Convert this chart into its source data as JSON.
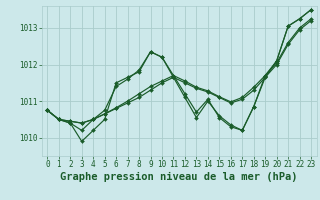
{
  "background_color": "#cce8ea",
  "grid_color": "#aacccc",
  "line_color": "#1a5c2a",
  "title": "Graphe pression niveau de la mer (hPa)",
  "title_fontsize": 7.5,
  "xlim": [
    -0.5,
    23.5
  ],
  "ylim": [
    1009.5,
    1013.6
  ],
  "yticks": [
    1010,
    1011,
    1012,
    1013
  ],
  "xticks": [
    0,
    1,
    2,
    3,
    4,
    5,
    6,
    7,
    8,
    9,
    10,
    11,
    12,
    13,
    14,
    15,
    16,
    17,
    18,
    19,
    20,
    21,
    22,
    23
  ],
  "series": [
    [
      1010.75,
      1010.5,
      1010.45,
      1010.4,
      1010.5,
      1010.65,
      1010.8,
      1010.95,
      1011.1,
      1011.3,
      1011.5,
      1011.65,
      1011.5,
      1011.35,
      1011.25,
      1011.1,
      1010.95,
      1011.05,
      1011.3,
      1011.65,
      1012.0,
      1012.55,
      1012.95,
      1013.2
    ],
    [
      1010.75,
      1010.5,
      1010.45,
      1010.4,
      1010.5,
      1010.65,
      1010.82,
      1011.0,
      1011.2,
      1011.4,
      1011.55,
      1011.7,
      1011.55,
      1011.38,
      1011.28,
      1011.12,
      1010.98,
      1011.1,
      1011.38,
      1011.7,
      1012.05,
      1012.6,
      1013.0,
      1013.25
    ],
    [
      1010.75,
      1010.5,
      1010.4,
      1009.9,
      1010.2,
      1010.5,
      1011.5,
      1011.65,
      1011.8,
      1012.35,
      1012.2,
      1011.65,
      1011.1,
      1010.55,
      1011.0,
      1010.6,
      1010.35,
      1010.2,
      1010.85,
      1011.7,
      1012.1,
      1013.05,
      1013.25,
      1013.5
    ],
    [
      1010.75,
      1010.5,
      1010.4,
      1010.2,
      1010.5,
      1010.75,
      1011.4,
      1011.6,
      1011.85,
      1012.35,
      1012.2,
      1011.7,
      1011.2,
      1010.7,
      1011.05,
      1010.55,
      1010.3,
      1010.2,
      1010.85,
      1011.65,
      1012.1,
      1013.05,
      1013.25,
      1013.5
    ]
  ]
}
